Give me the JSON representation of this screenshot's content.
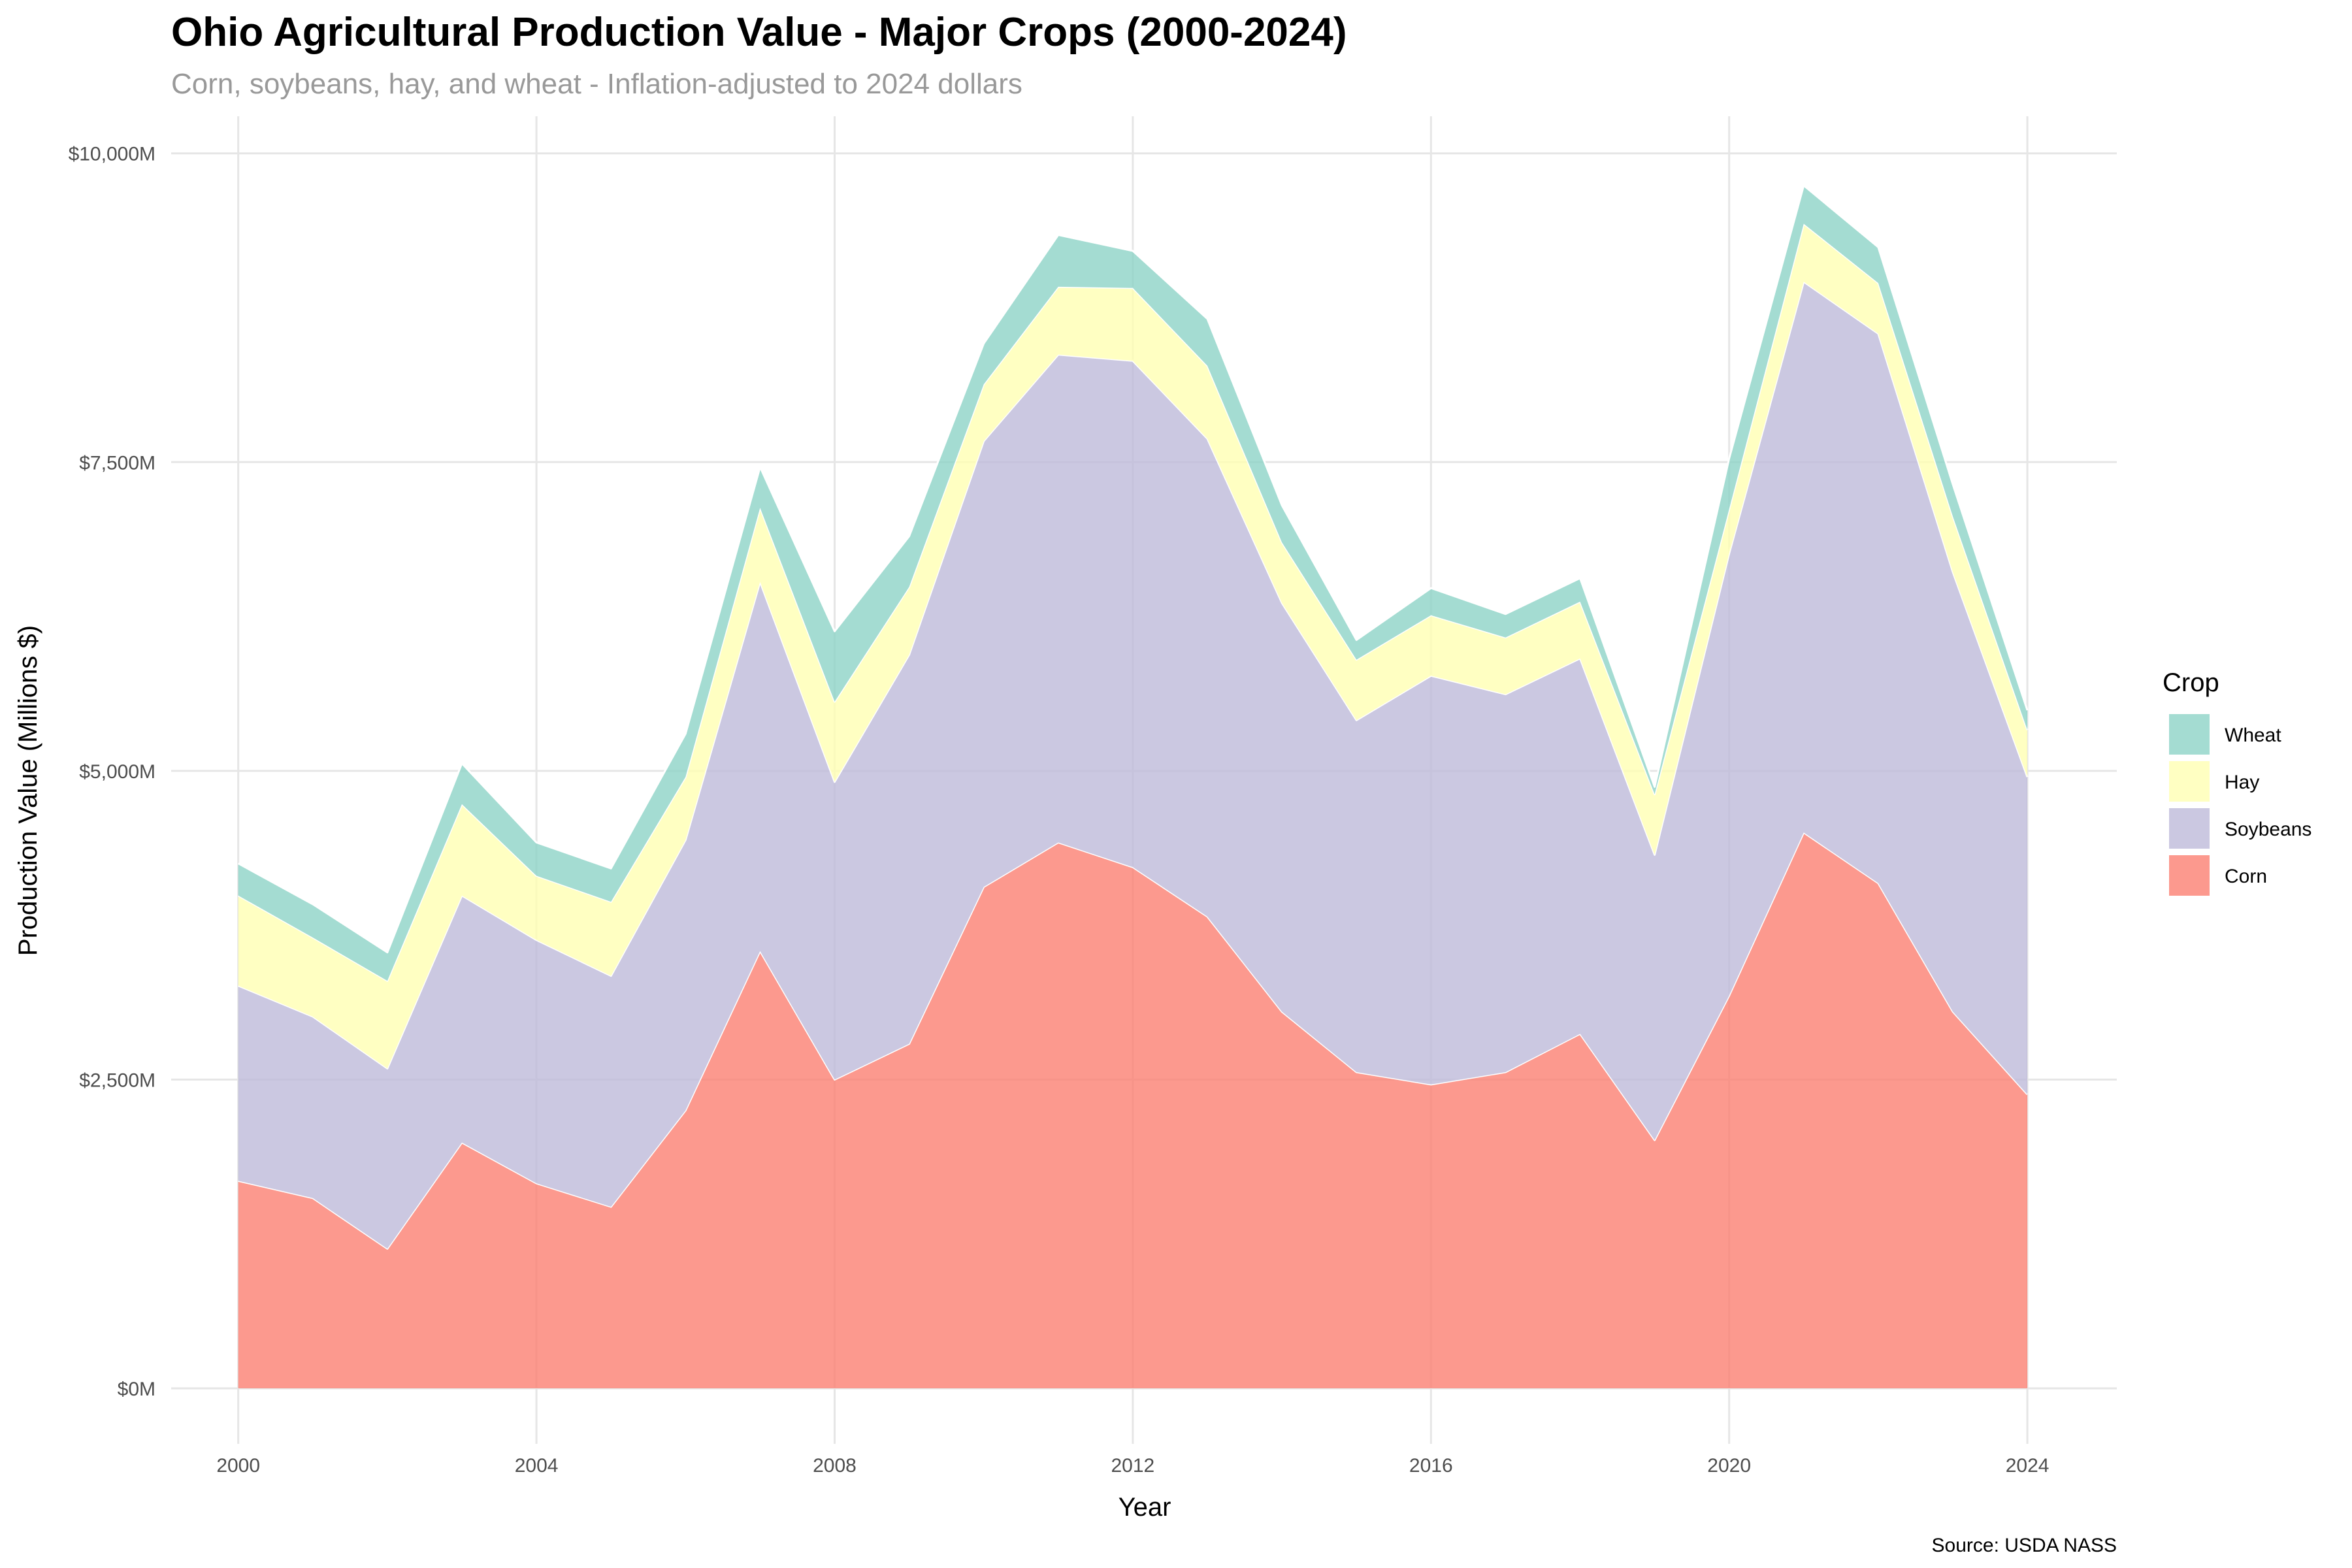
{
  "chart_data": {
    "type": "area",
    "stacked": true,
    "title": "Ohio Agricultural Production Value - Major Crops (2000-2024)",
    "subtitle": "Corn, soybeans, hay, and wheat - Inflation-adjusted to 2024 dollars",
    "xlabel": "Year",
    "ylabel": "Production Value (Millions $)",
    "caption": "Source: USDA NASS",
    "xlim": [
      1999.1,
      2025.2
    ],
    "ylim": [
      -450,
      10300
    ],
    "x_ticks": [
      2000,
      2004,
      2008,
      2012,
      2016,
      2020,
      2024
    ],
    "x_tick_labels": [
      "2000",
      "2004",
      "2008",
      "2012",
      "2016",
      "2020",
      "2024"
    ],
    "y_ticks": [
      0,
      2500,
      5000,
      7500,
      10000
    ],
    "y_tick_labels": [
      "$0M",
      "$2,500M",
      "$5,000M",
      "$7,500M",
      "$10,000M"
    ],
    "grid": true,
    "legend": {
      "title": "Crop",
      "position": "right",
      "order": [
        "Wheat",
        "Hay",
        "Soybeans",
        "Corn"
      ]
    },
    "x": [
      2000,
      2001,
      2002,
      2003,
      2004,
      2005,
      2006,
      2007,
      2008,
      2009,
      2010,
      2011,
      2012,
      2013,
      2014,
      2015,
      2016,
      2017,
      2018,
      2019,
      2020,
      2021,
      2022,
      2023,
      2024
    ],
    "series": [
      {
        "name": "Corn",
        "color": "#fb8072",
        "values": [
          1680,
          1540,
          1130,
          1990,
          1660,
          1470,
          2250,
          3540,
          2500,
          2790,
          4060,
          4420,
          4220,
          3820,
          3050,
          2560,
          2460,
          2560,
          2870,
          2010,
          3180,
          4500,
          4090,
          3050,
          2380
        ]
      },
      {
        "name": "Soybeans",
        "color": "#bebada",
        "values": [
          1580,
          1470,
          1460,
          2000,
          1970,
          1870,
          2190,
          2990,
          2410,
          3150,
          3610,
          3950,
          4100,
          3870,
          3310,
          2850,
          3310,
          3060,
          3040,
          2310,
          3580,
          4460,
          4450,
          3560,
          2570
        ]
      },
      {
        "name": "Hay",
        "color": "#ffffb3",
        "values": [
          730,
          640,
          710,
          740,
          520,
          600,
          510,
          600,
          650,
          550,
          460,
          550,
          590,
          590,
          490,
          490,
          490,
          460,
          460,
          490,
          360,
          470,
          410,
          450,
          380
        ]
      },
      {
        "name": "Wheat",
        "color": "#8dd3c7",
        "values": [
          260,
          270,
          230,
          330,
          270,
          270,
          350,
          330,
          570,
          410,
          330,
          420,
          300,
          380,
          300,
          160,
          220,
          190,
          190,
          60,
          410,
          310,
          290,
          260,
          160
        ]
      }
    ]
  }
}
